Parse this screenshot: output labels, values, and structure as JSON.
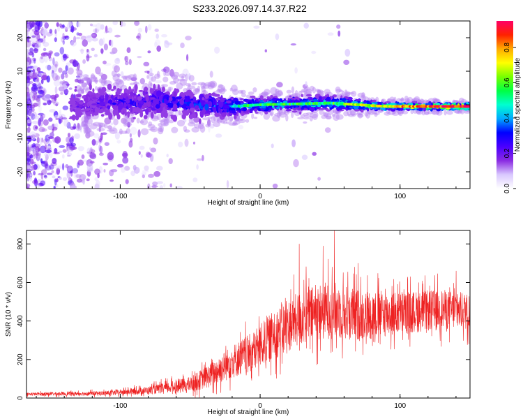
{
  "title": "S233.2026.097.14.37.R22",
  "chart_data": [
    {
      "type": "heatmap",
      "name": "spectrogram",
      "xlabel": "Height of straight line (km)",
      "ylabel": "Frequency (Hz)",
      "xlim": [
        -167,
        150
      ],
      "ylim": [
        -25,
        25
      ],
      "xticks": [
        -100,
        0,
        100
      ],
      "yticks": [
        -20,
        -10,
        0,
        10,
        20
      ],
      "colorbar": {
        "label": "Normalized spectral amplitude",
        "range": [
          0,
          0.95
        ],
        "ticks": [
          0.0,
          0.2,
          0.4,
          0.6,
          0.8
        ],
        "colors": [
          "#ffffff",
          "#d9c8ff",
          "#8a2be2",
          "#4a00ff",
          "#0000ff",
          "#00aaff",
          "#00ffd0",
          "#00ff44",
          "#77ff00",
          "#ffff00",
          "#ffaa00",
          "#ff2200",
          "#ff0066"
        ]
      },
      "band_profile": [
        {
          "x": -130,
          "center": 0.0,
          "width": 4.0,
          "peak": 0.22
        },
        {
          "x": -100,
          "center": 0.5,
          "width": 4.0,
          "peak": 0.28
        },
        {
          "x": -70,
          "center": 1.0,
          "width": 4.0,
          "peak": 0.32
        },
        {
          "x": -45,
          "center": 0.0,
          "width": 3.5,
          "peak": 0.34
        },
        {
          "x": -20,
          "center": -0.5,
          "width": 2.5,
          "peak": 0.45
        },
        {
          "x": 0,
          "center": 0.0,
          "width": 2.0,
          "peak": 0.5
        },
        {
          "x": 50,
          "center": 0.5,
          "width": 2.0,
          "peak": 0.5
        },
        {
          "x": 90,
          "center": -0.5,
          "width": 1.0,
          "peak": 0.7
        },
        {
          "x": 150,
          "center": -0.5,
          "width": 0.8,
          "peak": 0.9
        }
      ]
    },
    {
      "type": "line",
      "name": "snr",
      "xlabel": "Height of straight line (km)",
      "ylabel": "SNR (10 * v/v)",
      "xlim": [
        -167,
        150
      ],
      "ylim": [
        0,
        870
      ],
      "xticks": [
        -100,
        0,
        100
      ],
      "yticks": [
        0,
        200,
        400,
        600,
        800
      ],
      "color": "#ee2222",
      "trend": [
        {
          "x": -167,
          "mean": 20,
          "spread": 10
        },
        {
          "x": -110,
          "mean": 25,
          "spread": 15
        },
        {
          "x": -80,
          "mean": 40,
          "spread": 25
        },
        {
          "x": -50,
          "mean": 70,
          "spread": 50
        },
        {
          "x": -35,
          "mean": 120,
          "spread": 80
        },
        {
          "x": -20,
          "mean": 190,
          "spread": 110
        },
        {
          "x": -5,
          "mean": 240,
          "spread": 130
        },
        {
          "x": 10,
          "mean": 330,
          "spread": 160
        },
        {
          "x": 30,
          "mean": 420,
          "spread": 180
        },
        {
          "x": 50,
          "mean": 460,
          "spread": 190
        },
        {
          "x": 70,
          "mean": 430,
          "spread": 170
        },
        {
          "x": 100,
          "mean": 440,
          "spread": 140
        },
        {
          "x": 130,
          "mean": 460,
          "spread": 130
        },
        {
          "x": 150,
          "mean": 450,
          "spread": 120
        }
      ],
      "peaks": [
        {
          "x": 28,
          "y": 800
        },
        {
          "x": 45,
          "y": 790
        },
        {
          "x": 53,
          "y": 870
        },
        {
          "x": 70,
          "y": 700
        },
        {
          "x": 140,
          "y": 660
        }
      ]
    }
  ]
}
